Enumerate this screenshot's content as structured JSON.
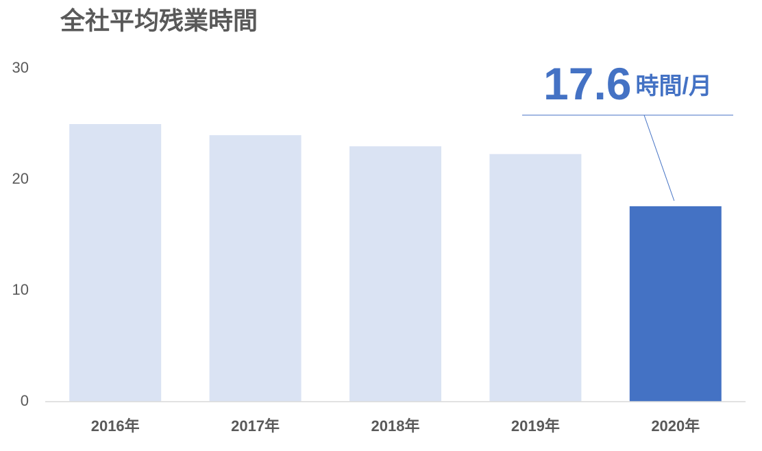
{
  "chart_data": {
    "type": "bar",
    "title": "全社平均残業時間",
    "categories": [
      "2016年",
      "2017年",
      "2018年",
      "2019年",
      "2020年"
    ],
    "values": [
      25.0,
      24.0,
      23.0,
      22.3,
      17.6
    ],
    "colors": [
      "#dae3f3",
      "#dae3f3",
      "#dae3f3",
      "#dae3f3",
      "#4472c4"
    ],
    "annotation": "時間/月",
    "ylim": [
      0,
      30
    ],
    "yticks": [
      0,
      10,
      20,
      30
    ],
    "grid": false
  }
}
